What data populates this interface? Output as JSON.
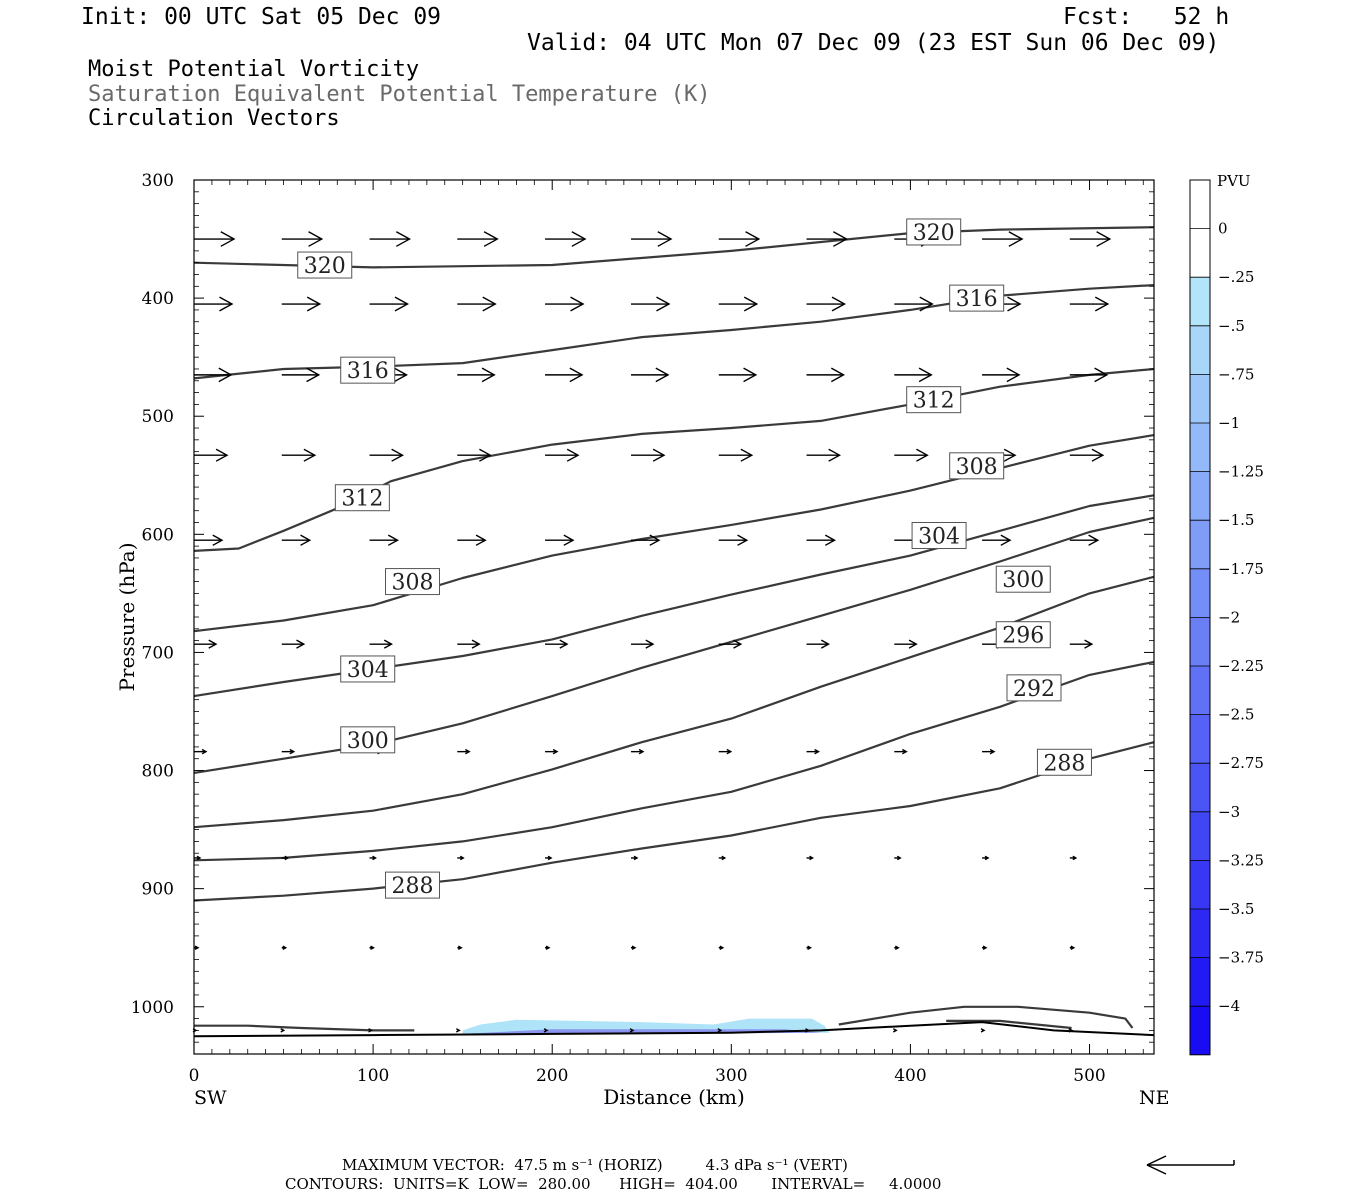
{
  "header": {
    "init": "Init: 00 UTC Sat 05 Dec 09",
    "fcst": "Fcst:   52 h",
    "valid": "Valid: 04 UTC Mon 07 Dec 09 (23 EST Sun 06 Dec 09)"
  },
  "subtitles": {
    "line1": "Moist Potential Vorticity",
    "line2": "Saturation Equivalent Potential Temperature (K)",
    "line3": "Circulation Vectors"
  },
  "footer": {
    "max_vector": "MAXIMUM VECTOR:  47.5 m s⁻¹ (HORIZ)         4.3 dPa s⁻¹ (VERT)",
    "contours": "CONTOURS:  UNITS=K  LOW=  280.00      HIGH=  404.00       INTERVAL=     4.0000"
  },
  "colors": {
    "contour": "#3a3a3a",
    "arrow": "#000000",
    "pv_light": "#aee3f8",
    "pv_mid": "#8a94ee",
    "pv_dark": "#1b12f2"
  },
  "chart_data": {
    "type": "cross-section",
    "xlabel": "Distance (km)",
    "ylabel": "Pressure (hPa)",
    "xlim": [
      0,
      536
    ],
    "ylim": [
      1040,
      300
    ],
    "x_ticks": [
      "0",
      "100",
      "200",
      "300",
      "400",
      "500"
    ],
    "y_ticks": [
      "300",
      "400",
      "500",
      "600",
      "700",
      "800",
      "900",
      "1000"
    ],
    "x_endpoints": [
      "SW",
      "NE"
    ],
    "colorbar": {
      "unit": "PVU",
      "labels": [
        "0",
        "-.25",
        "-.5",
        "-.75",
        "-1",
        "-1.25",
        "-1.5",
        "-1.75",
        "-2",
        "-2.25",
        "-2.5",
        "-2.75",
        "-3",
        "-3.25",
        "-3.5",
        "-3.75",
        "-4"
      ]
    },
    "contours": [
      {
        "level": "320",
        "points": [
          [
            0,
            370
          ],
          [
            100,
            374
          ],
          [
            200,
            372
          ],
          [
            300,
            360
          ],
          [
            400,
            345
          ],
          [
            450,
            342
          ],
          [
            536,
            340
          ]
        ],
        "labels": [
          [
            73,
            372
          ],
          [
            413,
            344
          ]
        ]
      },
      {
        "level": "316",
        "points": [
          [
            0,
            468
          ],
          [
            50,
            460
          ],
          [
            100,
            458
          ],
          [
            150,
            455
          ],
          [
            200,
            444
          ],
          [
            250,
            433
          ],
          [
            300,
            427
          ],
          [
            350,
            420
          ],
          [
            400,
            410
          ],
          [
            450,
            398
          ],
          [
            500,
            392
          ],
          [
            536,
            389
          ]
        ],
        "labels": [
          [
            97,
            461
          ],
          [
            437,
            400
          ]
        ]
      },
      {
        "level": "312",
        "points": [
          [
            0,
            614
          ],
          [
            25,
            612
          ],
          [
            50,
            597
          ],
          [
            80,
            578
          ],
          [
            110,
            555
          ],
          [
            150,
            538
          ],
          [
            200,
            524
          ],
          [
            250,
            515
          ],
          [
            300,
            510
          ],
          [
            350,
            504
          ],
          [
            400,
            490
          ],
          [
            450,
            475
          ],
          [
            500,
            465
          ],
          [
            536,
            460
          ]
        ],
        "labels": [
          [
            94,
            569
          ],
          [
            413,
            486
          ]
        ]
      },
      {
        "level": "308",
        "points": [
          [
            0,
            682
          ],
          [
            50,
            673
          ],
          [
            100,
            660
          ],
          [
            150,
            637
          ],
          [
            200,
            618
          ],
          [
            250,
            604
          ],
          [
            300,
            592
          ],
          [
            350,
            579
          ],
          [
            400,
            563
          ],
          [
            450,
            544
          ],
          [
            500,
            525
          ],
          [
            536,
            516
          ]
        ],
        "labels": [
          [
            122,
            640
          ],
          [
            437,
            542
          ]
        ]
      },
      {
        "level": "304",
        "points": [
          [
            0,
            737
          ],
          [
            50,
            725
          ],
          [
            100,
            714
          ],
          [
            150,
            703
          ],
          [
            200,
            689
          ],
          [
            250,
            669
          ],
          [
            300,
            651
          ],
          [
            350,
            634
          ],
          [
            400,
            618
          ],
          [
            450,
            597
          ],
          [
            500,
            576
          ],
          [
            536,
            567
          ]
        ],
        "labels": [
          [
            97,
            714
          ],
          [
            416,
            601
          ]
        ]
      },
      {
        "level": "300",
        "points": [
          [
            0,
            802
          ],
          [
            50,
            790
          ],
          [
            100,
            778
          ],
          [
            150,
            760
          ],
          [
            200,
            737
          ],
          [
            250,
            713
          ],
          [
            300,
            691
          ],
          [
            350,
            669
          ],
          [
            400,
            647
          ],
          [
            450,
            623
          ],
          [
            500,
            598
          ],
          [
            536,
            586
          ]
        ],
        "labels": [
          [
            97,
            774
          ],
          [
            463,
            638
          ]
        ]
      },
      {
        "level": "296",
        "points": [
          [
            0,
            848
          ],
          [
            50,
            842
          ],
          [
            100,
            834
          ],
          [
            150,
            820
          ],
          [
            200,
            799
          ],
          [
            250,
            776
          ],
          [
            300,
            756
          ],
          [
            350,
            729
          ],
          [
            400,
            704
          ],
          [
            450,
            679
          ],
          [
            500,
            650
          ],
          [
            536,
            636
          ]
        ],
        "labels": [
          [
            463,
            685
          ]
        ]
      },
      {
        "level": "292",
        "points": [
          [
            0,
            876
          ],
          [
            50,
            874
          ],
          [
            100,
            868
          ],
          [
            150,
            860
          ],
          [
            200,
            848
          ],
          [
            250,
            832
          ],
          [
            300,
            818
          ],
          [
            350,
            796
          ],
          [
            400,
            769
          ],
          [
            450,
            746
          ],
          [
            500,
            719
          ],
          [
            536,
            708
          ]
        ],
        "labels": [
          [
            469,
            730
          ]
        ]
      },
      {
        "level": "288",
        "points": [
          [
            0,
            910
          ],
          [
            50,
            906
          ],
          [
            100,
            900
          ],
          [
            150,
            892
          ],
          [
            200,
            878
          ],
          [
            250,
            866
          ],
          [
            300,
            855
          ],
          [
            350,
            840
          ],
          [
            400,
            830
          ],
          [
            450,
            815
          ],
          [
            500,
            790
          ],
          [
            536,
            776
          ]
        ],
        "labels": [
          [
            122,
            897
          ],
          [
            486,
            793
          ]
        ]
      },
      {
        "level": "",
        "points": [
          [
            0,
            1016
          ],
          [
            30,
            1016
          ],
          [
            60,
            1018
          ],
          [
            100,
            1020
          ],
          [
            123,
            1020
          ]
        ],
        "labels": []
      },
      {
        "level": "",
        "points": [
          [
            360,
            1015
          ],
          [
            400,
            1005
          ],
          [
            430,
            1000
          ],
          [
            460,
            1000
          ],
          [
            500,
            1005
          ],
          [
            520,
            1010
          ],
          [
            524,
            1018
          ]
        ],
        "labels": []
      },
      {
        "level": "",
        "points": [
          [
            420,
            1012
          ],
          [
            450,
            1012
          ],
          [
            490,
            1018
          ]
        ],
        "labels": []
      }
    ],
    "surface": [
      [
        0,
        1025
      ],
      [
        100,
        1024
      ],
      [
        200,
        1023
      ],
      [
        300,
        1022
      ],
      [
        350,
        1020
      ],
      [
        400,
        1016
      ],
      [
        440,
        1013
      ],
      [
        480,
        1020
      ],
      [
        536,
        1024
      ]
    ],
    "pv_region": {
      "level": "-.25 to -1",
      "outer": [
        [
          150,
          1020
        ],
        [
          160,
          1015
        ],
        [
          180,
          1011
        ],
        [
          250,
          1013
        ],
        [
          290,
          1015
        ],
        [
          310,
          1010
        ],
        [
          345,
          1010
        ],
        [
          352,
          1016
        ],
        [
          355,
          1022
        ],
        [
          150,
          1023
        ]
      ],
      "inner": [
        [
          150,
          1023
        ],
        [
          200,
          1019
        ],
        [
          260,
          1019
        ],
        [
          330,
          1019
        ],
        [
          350,
          1022
        ],
        [
          150,
          1024
        ]
      ]
    },
    "vector_rows": {
      "pressures": [
        350,
        405,
        465,
        533,
        605,
        693,
        784,
        874,
        950,
        1020
      ],
      "lengths": [
        40,
        38,
        37,
        33,
        28,
        22,
        12,
        6,
        4,
        2
      ],
      "x": [
        0,
        49,
        98,
        147,
        196,
        244,
        293,
        342,
        391,
        440,
        489
      ]
    },
    "reference_vector": "47.5 m s-1"
  }
}
